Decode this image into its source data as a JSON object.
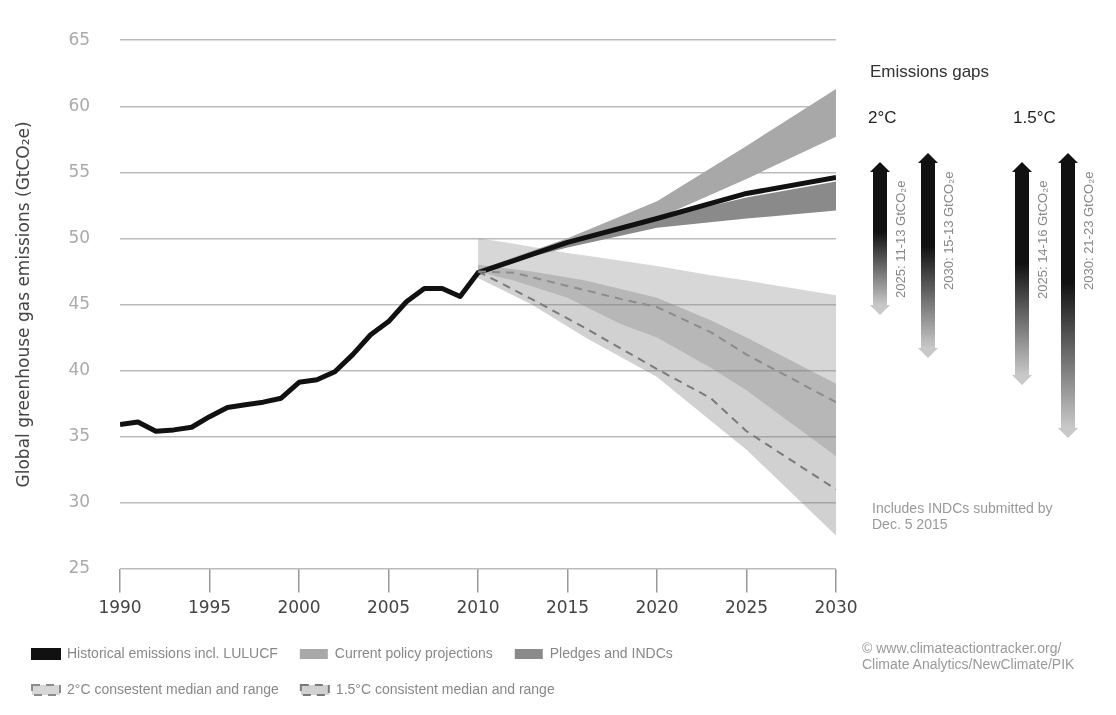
{
  "chart_data": {
    "type": "line",
    "ylabel": "Global greenhouse gas emissions (GtCO₂e)",
    "xlim": [
      1990,
      2030
    ],
    "xticks": [
      1990,
      1995,
      2000,
      2005,
      2010,
      2015,
      2020,
      2025,
      2030
    ],
    "ylim": [
      25,
      65
    ],
    "yticks": [
      25,
      30,
      35,
      40,
      45,
      50,
      55,
      60,
      65
    ],
    "grid": "y",
    "legend": "bottom",
    "marker": "none",
    "series": [
      {
        "name": "Historical emissions incl. LULUCF",
        "color": "#111111",
        "line_style": "solid",
        "x": [
          1990,
          1991,
          1992,
          1993,
          1994,
          1995,
          1996,
          1997,
          1998,
          1999,
          2000,
          2001,
          2002,
          2003,
          2004,
          2005,
          2006,
          2007,
          2008,
          2009,
          2010,
          2015,
          2020,
          2025,
          2030
        ],
        "values": [
          35.9,
          36.1,
          35.4,
          35.5,
          35.7,
          36.5,
          37.2,
          37.4,
          37.6,
          37.9,
          39.1,
          39.3,
          39.9,
          41.2,
          42.7,
          43.7,
          45.2,
          46.2,
          46.2,
          45.6,
          47.4,
          49.7,
          51.5,
          53.4,
          54.6
        ]
      },
      {
        "name": "Current policy projections",
        "color": "#a8a8a8",
        "x": [
          2010,
          2015,
          2020,
          2025,
          2030
        ],
        "values": [
          null,
          null,
          null,
          null,
          null
        ],
        "lower": [
          47.6,
          49.6,
          51.5,
          54.5,
          57.7
        ],
        "upper": [
          47.6,
          50.0,
          52.8,
          57.0,
          61.3
        ]
      },
      {
        "name": "Pledges and INDCs",
        "color": "#8a8a8a",
        "x": [
          2010,
          2015,
          2020,
          2025,
          2030
        ],
        "values": [
          null,
          null,
          null,
          null,
          null
        ],
        "lower": [
          47.6,
          49.3,
          50.8,
          51.5,
          52.1
        ],
        "upper": [
          47.6,
          49.6,
          51.5,
          53.1,
          54.3
        ]
      },
      {
        "name": "2°C consestent median and range",
        "color": "#8c8c8c",
        "line_style": "dashed",
        "x": [
          2010,
          2012,
          2015,
          2018,
          2020,
          2023,
          2025,
          2030
        ],
        "values": [
          47.5,
          47.4,
          46.4,
          45.4,
          44.8,
          42.9,
          41.2,
          37.6
        ],
        "lower": [
          47.5,
          46.8,
          45.5,
          43.5,
          42.5,
          40.2,
          38.5,
          33.5
        ],
        "upper": [
          50,
          49.6,
          48.9,
          48.3,
          47.9,
          47.2,
          46.8,
          45.7
        ]
      },
      {
        "name": "1.5°C consistent median and range",
        "color": "#7a7a7a",
        "line_style": "dashed",
        "x": [
          2010,
          2013,
          2016,
          2020,
          2023,
          2025,
          2030
        ],
        "values": [
          47.5,
          45.4,
          43.2,
          40.1,
          37.9,
          35.4,
          31.0
        ],
        "lower": [
          47,
          45,
          42.5,
          39.5,
          36.2,
          34,
          27.5
        ],
        "upper": [
          48,
          47.5,
          46.8,
          45.5,
          43.8,
          42.5,
          39
        ]
      }
    ],
    "annotations": [
      "Emissions gaps",
      "2°C",
      "1.5°C",
      "2025: 11-13 GtCO₂e",
      "2030: 15-13 GtCO₂e",
      "2025: 14-16 GtCO₂e",
      "2030: 21-23 GtCO₂e",
      "Includes INDCs submitted by Dec. 5 2015",
      "© www.climateactiontracker.org/ Climate Analytics/NewClimate/PIK"
    ]
  }
}
